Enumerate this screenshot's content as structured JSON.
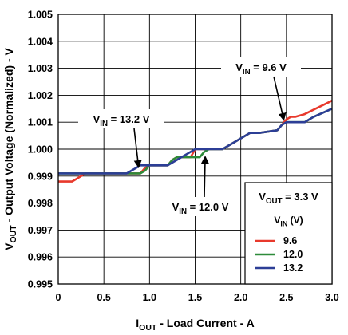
{
  "chart_data": {
    "type": "line",
    "xlabel_main": "I",
    "xlabel_sub": "OUT",
    "xlabel_rest": " - Load Current - A",
    "ylabel_main": "V",
    "ylabel_sub": "OUT",
    "ylabel_rest": " - Output Voltage (Normalized)  - V",
    "xlim": [
      0,
      3.0
    ],
    "ylim": [
      0.995,
      1.005
    ],
    "x_ticks": [
      "0",
      "0.5",
      "1.0",
      "1.5",
      "2.0",
      "2.5",
      "3.0"
    ],
    "y_ticks": [
      "0.995",
      "0.996",
      "0.997",
      "0.998",
      "0.999",
      "1.000",
      "1.001",
      "1.002",
      "1.003",
      "1.004",
      "1.005"
    ],
    "grid": true,
    "legend": {
      "position": "bottom-right",
      "vout_main": "V",
      "vout_sub": "OUT",
      "vout_rest": " = 3.3 V",
      "header_main": "V",
      "header_sub": "IN",
      "header_rest": " (V)"
    },
    "series": [
      {
        "name": "9.6",
        "color": "#e8392c",
        "x": [
          0,
          0.15,
          0.2,
          0.25,
          0.3,
          0.9,
          0.95,
          1.0,
          1.2,
          1.25,
          1.3,
          1.45,
          1.5,
          1.8,
          1.95,
          2.0,
          2.05,
          2.1,
          2.15,
          2.2,
          2.4,
          2.45,
          2.5,
          2.55,
          2.6,
          2.7,
          3.0
        ],
        "y": [
          0.9988,
          0.9988,
          0.9989,
          0.999,
          0.9991,
          0.9991,
          0.9993,
          0.9994,
          0.9994,
          0.9996,
          0.9997,
          0.9997,
          1.0,
          1.0,
          1.0003,
          1.0004,
          1.0005,
          1.0006,
          1.0006,
          1.0006,
          1.0007,
          1.0009,
          1.0011,
          1.0012,
          1.0012,
          1.0013,
          1.0018
        ]
      },
      {
        "name": "12.0",
        "color": "#2e8b3a",
        "x": [
          0,
          0.9,
          0.95,
          1.0,
          1.2,
          1.25,
          1.3,
          1.55,
          1.6,
          1.65,
          1.8,
          1.95,
          2.0,
          2.05,
          2.1,
          2.2,
          2.4,
          2.45,
          2.5,
          2.7,
          2.8,
          3.0
        ],
        "y": [
          0.9991,
          0.9991,
          0.9992,
          0.9994,
          0.9994,
          0.9996,
          0.9997,
          0.9997,
          0.9999,
          1.0,
          1.0,
          1.0003,
          1.0004,
          1.0005,
          1.0006,
          1.0006,
          1.0007,
          1.0009,
          1.001,
          1.001,
          1.0012,
          1.0015
        ]
      },
      {
        "name": "13.2",
        "color": "#2c3e96",
        "x": [
          0,
          0.75,
          0.8,
          0.85,
          0.9,
          0.95,
          1.2,
          1.25,
          1.3,
          1.35,
          1.4,
          1.45,
          1.5,
          1.8,
          1.95,
          2.0,
          2.05,
          2.1,
          2.15,
          2.2,
          2.4,
          2.45,
          2.5,
          2.7,
          2.8,
          3.0
        ],
        "y": [
          0.9991,
          0.9991,
          0.9992,
          0.9993,
          0.9994,
          0.9994,
          0.9994,
          0.9995,
          0.9996,
          0.9997,
          0.9998,
          0.9999,
          1.0,
          1.0,
          1.0003,
          1.0004,
          1.0005,
          1.0006,
          1.0006,
          1.0006,
          1.0007,
          1.0009,
          1.001,
          1.001,
          1.0012,
          1.0015
        ]
      }
    ],
    "annotations": [
      {
        "label_main": "V",
        "label_sub": "IN",
        "label_rest": " = 9.6 V",
        "arrow_to": [
          2.47,
          1.0011
        ]
      },
      {
        "label_main": "V",
        "label_sub": "IN",
        "label_rest": " = 13.2 V",
        "arrow_to": [
          0.88,
          0.99935
        ]
      },
      {
        "label_main": "V",
        "label_sub": "IN",
        "label_rest": " = 12.0 V",
        "arrow_to": [
          1.61,
          0.9997
        ]
      }
    ]
  }
}
